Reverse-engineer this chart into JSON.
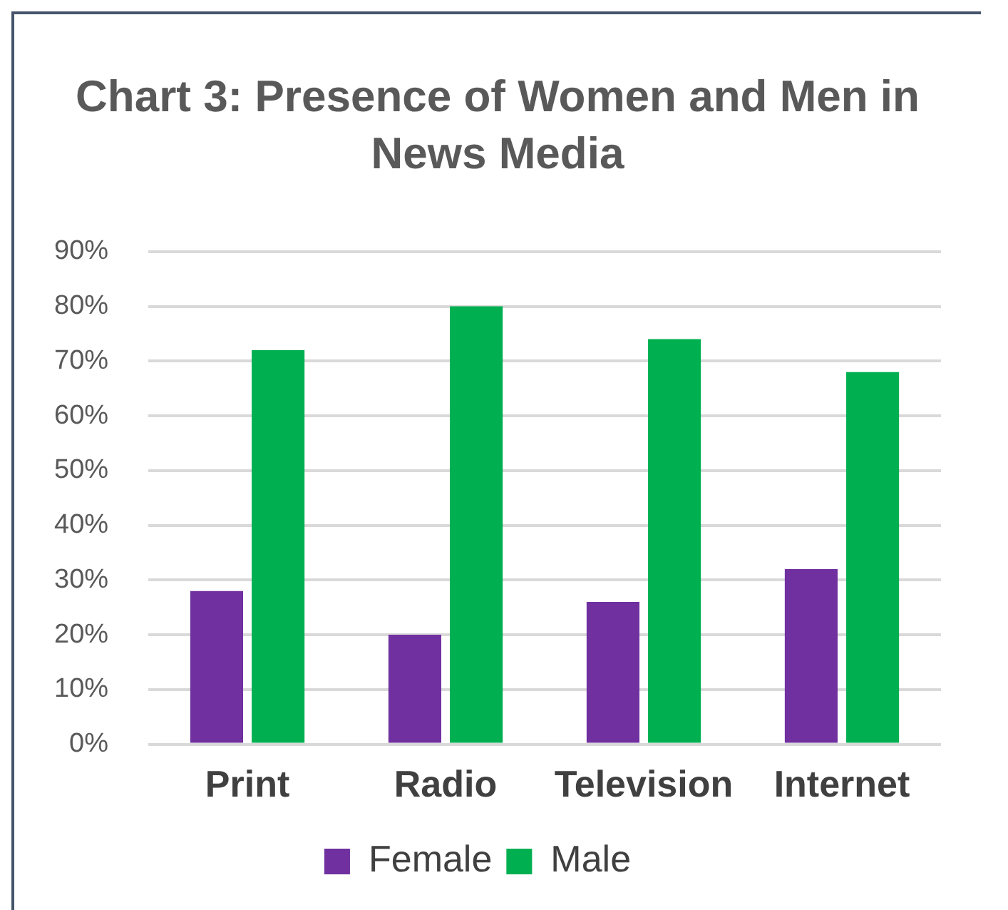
{
  "chart_data": {
    "type": "bar",
    "title": "Chart 3: Presence of Women and Men in News Media",
    "categories": [
      "Print",
      "Radio",
      "Television",
      "Internet"
    ],
    "series": [
      {
        "name": "Female",
        "color": "#7030a0",
        "values": [
          28,
          20,
          26,
          32
        ]
      },
      {
        "name": "Male",
        "color": "#00b050",
        "values": [
          72,
          80,
          74,
          68
        ]
      }
    ],
    "ylim": [
      0,
      90
    ],
    "yticks": [
      {
        "value": 0,
        "label": "0%"
      },
      {
        "value": 10,
        "label": "10%"
      },
      {
        "value": 20,
        "label": "20%"
      },
      {
        "value": 30,
        "label": "30%"
      },
      {
        "value": 40,
        "label": "40%"
      },
      {
        "value": 50,
        "label": "50%"
      },
      {
        "value": 60,
        "label": "60%"
      },
      {
        "value": 70,
        "label": "70%"
      },
      {
        "value": 80,
        "label": "80%"
      },
      {
        "value": 90,
        "label": "90%"
      }
    ],
    "grid": "y",
    "legend": "bottom"
  }
}
